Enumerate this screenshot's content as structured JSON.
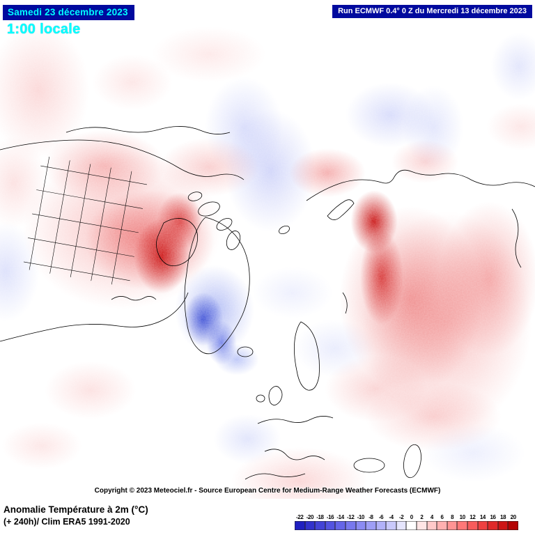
{
  "header": {
    "date_label": "Samedi 23 décembre 2023",
    "time_label": "1:00 locale",
    "run_label": "Run ECMWF 0.4° 0 Z du Mercredi 13 décembre 2023"
  },
  "map": {
    "description": "Northern hemisphere polar view of 2m temperature anomaly, warm anomalies over western North America and Siberia, cold anomaly over Greenland",
    "copyright": "Copyright © 2023 Meteociel.fr - Source European Centre for Medium-Range Weather Forecasts (ECMWF)"
  },
  "footer": {
    "title": "Anomalie Température à 2m (°C)",
    "subtitle": "(+ 240h)/ Clim ERA5 1991-2020"
  },
  "legend": {
    "values": [
      -22,
      -20,
      -18,
      -16,
      -14,
      -12,
      -10,
      -8,
      -6,
      -4,
      -2,
      0,
      2,
      4,
      6,
      8,
      10,
      12,
      14,
      16,
      18,
      20
    ],
    "colors": [
      "#2020c0",
      "#3232cc",
      "#4343d6",
      "#5454e0",
      "#6565e8",
      "#7878ee",
      "#8b8bf3",
      "#9e9ef6",
      "#b2b2f9",
      "#c9c9fb",
      "#e5e5fd",
      "#ffffff",
      "#ffe5e5",
      "#ffc9c9",
      "#ffb0b0",
      "#ff9494",
      "#ff7878",
      "#f75c5c",
      "#ef4141",
      "#e02a2a",
      "#cd1515",
      "#b40404"
    ]
  },
  "colors": {
    "header_bg": "#000a9e",
    "accent_cyan": "#00ffff",
    "header_text": "#ffffff",
    "warm_core": "#c80505",
    "cold_core": "#263ad0"
  }
}
